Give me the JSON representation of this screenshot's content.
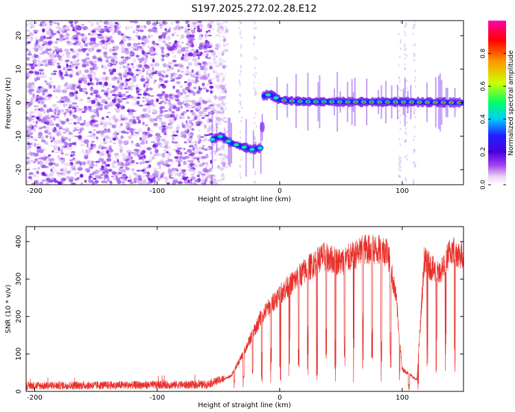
{
  "title": "S197.2025.272.02.28.E12",
  "chart_data": [
    {
      "type": "heatmap",
      "name": "spectrogram",
      "xlabel": "Height of straight line (km)",
      "ylabel": "Frequency (Hz)",
      "xlim": [
        -207,
        150
      ],
      "ylim": [
        -24.5,
        24.5
      ],
      "xticks": [
        -200,
        -100,
        0,
        100
      ],
      "yticks": [
        -20,
        -10,
        0,
        10,
        20
      ],
      "xtick_labels": [
        "-200",
        "-100",
        "0",
        "100"
      ],
      "ytick_labels": [
        "-20",
        "-10",
        "0",
        "10",
        "20"
      ],
      "colorbar": {
        "label": "Normalized spectral amplitude",
        "range": [
          0,
          1
        ],
        "ticks": [
          0.0,
          0.2,
          0.4,
          0.6,
          0.8
        ],
        "tick_labels": [
          "0.0",
          "0.2",
          "0.4",
          "0.6",
          "0.8"
        ],
        "colors": [
          "#ffffff",
          "#e9d3f5",
          "#a040f0",
          "#6a00e0",
          "#2020ff",
          "#00ccff",
          "#00ff66",
          "#ccff00",
          "#ff9900",
          "#ff0000",
          "#ff00aa"
        ]
      },
      "signal_track": [
        {
          "x": -55,
          "y": -11
        },
        {
          "x": -48,
          "y": -10
        },
        {
          "x": -40,
          "y": -12
        },
        {
          "x": -32,
          "y": -13
        },
        {
          "x": -22,
          "y": -14
        },
        {
          "x": -15,
          "y": -13.5
        },
        {
          "x": -13,
          "y": 2
        },
        {
          "x": -8,
          "y": 2.5
        },
        {
          "x": 0,
          "y": 0.8
        },
        {
          "x": 20,
          "y": 0.3
        },
        {
          "x": 60,
          "y": 0.2
        },
        {
          "x": 100,
          "y": 0.2
        },
        {
          "x": 150,
          "y": 0
        }
      ]
    },
    {
      "type": "line",
      "name": "snr",
      "xlabel": "Height of straight line (km)",
      "ylabel": "SNR (10 * v/v)",
      "xlim": [
        -207,
        150
      ],
      "ylim": [
        0,
        440
      ],
      "xticks": [
        -200,
        -100,
        0,
        100
      ],
      "yticks": [
        0,
        100,
        200,
        300,
        400
      ],
      "xtick_labels": [
        "-200",
        "-100",
        "0",
        "100"
      ],
      "ytick_labels": [
        "0",
        "100",
        "200",
        "300",
        "400"
      ],
      "color": "#e8302a",
      "envelope": [
        {
          "x": -207,
          "y": 15
        },
        {
          "x": -60,
          "y": 18
        },
        {
          "x": -40,
          "y": 40
        },
        {
          "x": -30,
          "y": 100
        },
        {
          "x": -15,
          "y": 200
        },
        {
          "x": 0,
          "y": 260
        },
        {
          "x": 20,
          "y": 320
        },
        {
          "x": 35,
          "y": 360
        },
        {
          "x": 50,
          "y": 345
        },
        {
          "x": 70,
          "y": 380
        },
        {
          "x": 88,
          "y": 375
        },
        {
          "x": 95,
          "y": 250
        },
        {
          "x": 100,
          "y": 60
        },
        {
          "x": 112,
          "y": 30
        },
        {
          "x": 118,
          "y": 350
        },
        {
          "x": 130,
          "y": 310
        },
        {
          "x": 140,
          "y": 380
        },
        {
          "x": 150,
          "y": 360
        }
      ]
    }
  ]
}
